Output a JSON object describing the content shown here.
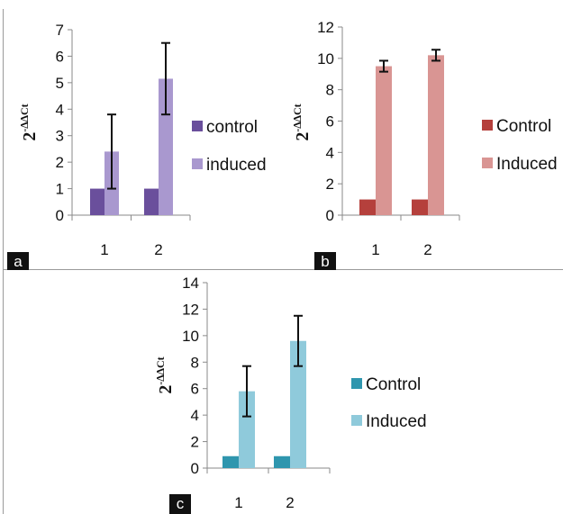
{
  "panels": [
    {
      "letter": "a"
    },
    {
      "letter": "b"
    },
    {
      "letter": "c"
    }
  ],
  "chart_data": [
    {
      "type": "bar",
      "panel": "a",
      "title": "",
      "xlabel": "",
      "ylabel": "2-∆∆Ct",
      "ylim": [
        0,
        7
      ],
      "yticks": [
        0,
        1,
        2,
        3,
        4,
        5,
        6,
        7
      ],
      "categories": [
        "1",
        "2"
      ],
      "grid": false,
      "legend_position": "right",
      "series": [
        {
          "name": "control",
          "values": [
            1,
            1
          ],
          "errors": [
            null,
            null
          ],
          "color": "#6a4f9c"
        },
        {
          "name": "induced",
          "values": [
            2.4,
            5.15
          ],
          "errors": [
            1.4,
            1.35
          ],
          "color": "#a998cf"
        }
      ]
    },
    {
      "type": "bar",
      "panel": "b",
      "title": "",
      "xlabel": "",
      "ylabel": "2-∆∆Ct",
      "ylim": [
        0,
        12
      ],
      "yticks": [
        0,
        2,
        4,
        6,
        8,
        10,
        12
      ],
      "categories": [
        "1",
        "2"
      ],
      "grid": false,
      "legend_position": "right",
      "series": [
        {
          "name": "Control",
          "values": [
            1,
            1
          ],
          "errors": [
            null,
            null
          ],
          "color": "#b5403c"
        },
        {
          "name": "Induced",
          "values": [
            9.5,
            10.2
          ],
          "errors": [
            0.35,
            0.35
          ],
          "color": "#d99593"
        }
      ]
    },
    {
      "type": "bar",
      "panel": "c",
      "title": "",
      "xlabel": "",
      "ylabel": "2-∆∆Ct",
      "ylim": [
        0,
        14
      ],
      "yticks": [
        0,
        2,
        4,
        6,
        8,
        10,
        12,
        14
      ],
      "categories": [
        "1",
        "2"
      ],
      "grid": false,
      "legend_position": "right",
      "series": [
        {
          "name": "Control",
          "values": [
            0.9,
            0.9
          ],
          "errors": [
            null,
            null
          ],
          "color": "#2f96ae"
        },
        {
          "name": "Induced",
          "values": [
            5.8,
            9.6
          ],
          "errors": [
            1.9,
            1.9
          ],
          "color": "#8fcadb"
        }
      ]
    }
  ]
}
